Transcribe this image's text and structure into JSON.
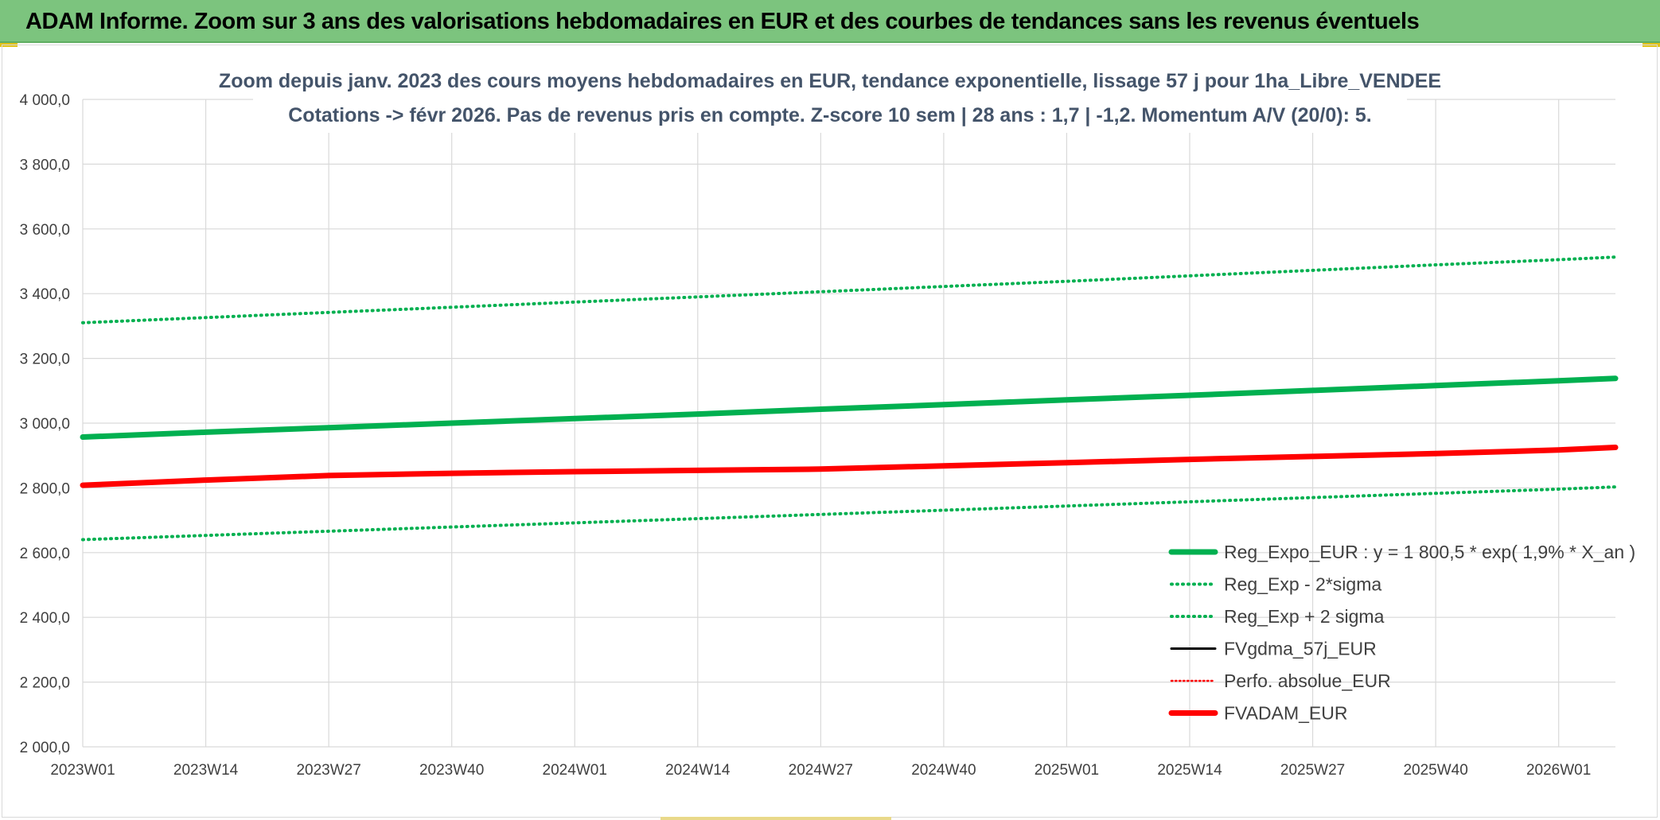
{
  "banner": {
    "title": "ADAM Informe. Zoom sur 3 ans des valorisations hebdomadaires en EUR et des courbes de tendances sans les revenus éventuels"
  },
  "colors": {
    "banner": "#7cc47e",
    "reg_expo": "#00b050",
    "band": "#00b050",
    "fvgdma": "#000000",
    "perfo": "#ff0000",
    "fvadam": "#ff0000",
    "title_text": "#44546a",
    "grid": "#d9d9d9"
  },
  "chart_data": {
    "type": "line",
    "title": "Zoom depuis janv. 2023 des cours moyens hebdomadaires en EUR, tendance exponentielle, lissage 57 j pour 1ha_Libre_VENDEE",
    "subtitle": "Cotations -> févr 2026. Pas de revenus pris en compte. Z-score 10 sem | 28 ans : 1,7 | -1,2. Momentum A/V (20/0): 5.",
    "xlabel": "",
    "ylabel": "",
    "ylim": [
      2000,
      4000
    ],
    "yticks": [
      "2 000,0",
      "2 200,0",
      "2 400,0",
      "2 600,0",
      "2 800,0",
      "3 000,0",
      "3 200,0",
      "3 400,0",
      "3 600,0",
      "3 800,0",
      "4 000,0"
    ],
    "x_labels": [
      "2023W01",
      "2023W14",
      "2023W27",
      "2023W40",
      "2024W01",
      "2024W14",
      "2024W27",
      "2024W40",
      "2025W01",
      "2025W14",
      "2025W27",
      "2025W40",
      "2026W01"
    ],
    "x_range": [
      "2023W01",
      "2026W07"
    ],
    "grid": true,
    "legend_position": "bottom-right",
    "series": [
      {
        "name": "Reg_Expo_EUR : y = 1 800,5 * exp( 1,9% *  X_an )",
        "style": "solid-thick",
        "color": "#00b050",
        "x": [
          "2023W01",
          "2023W14",
          "2023W27",
          "2023W40",
          "2024W01",
          "2024W14",
          "2024W27",
          "2024W40",
          "2025W01",
          "2025W14",
          "2025W27",
          "2025W40",
          "2026W01",
          "2026W07"
        ],
        "values": [
          2957,
          2972,
          2986,
          3000,
          3014,
          3028,
          3043,
          3057,
          3072,
          3086,
          3101,
          3116,
          3131,
          3138
        ]
      },
      {
        "name": "Reg_Exp - 2*sigma",
        "style": "dotted",
        "color": "#00b050",
        "x": [
          "2023W01",
          "2023W14",
          "2023W27",
          "2023W40",
          "2024W01",
          "2024W14",
          "2024W27",
          "2024W40",
          "2025W01",
          "2025W14",
          "2025W27",
          "2025W40",
          "2026W01",
          "2026W07"
        ],
        "values": [
          2640,
          2653,
          2666,
          2679,
          2692,
          2705,
          2718,
          2731,
          2744,
          2757,
          2770,
          2783,
          2796,
          2803
        ]
      },
      {
        "name": "Reg_Exp + 2 sigma",
        "style": "dotted",
        "color": "#00b050",
        "x": [
          "2023W01",
          "2023W14",
          "2023W27",
          "2023W40",
          "2024W01",
          "2024W14",
          "2024W27",
          "2024W40",
          "2025W01",
          "2025W14",
          "2025W27",
          "2025W40",
          "2026W01",
          "2026W07"
        ],
        "values": [
          3310,
          3326,
          3342,
          3358,
          3374,
          3390,
          3406,
          3422,
          3438,
          3455,
          3472,
          3489,
          3505,
          3513
        ]
      },
      {
        "name": "FVgdma_57j_EUR",
        "style": "solid",
        "color": "#000000",
        "x": [
          "2023W01",
          "2023W14",
          "2023W27",
          "2023W40",
          "2024W01",
          "2024W14",
          "2024W27",
          "2024W40",
          "2025W01",
          "2025W14",
          "2025W27",
          "2025W40",
          "2026W01",
          "2026W07"
        ],
        "values": [
          2808,
          2824,
          2838,
          2845,
          2850,
          2854,
          2858,
          2868,
          2878,
          2888,
          2897,
          2906,
          2917,
          2922
        ]
      },
      {
        "name": "Perfo. absolue_EUR",
        "style": "dotted-thin",
        "color": "#ff0000",
        "x": [],
        "values": []
      },
      {
        "name": "FVADAM_EUR",
        "style": "solid-thick",
        "color": "#ff0000",
        "x": [
          "2023W01",
          "2023W14",
          "2023W27",
          "2023W40",
          "2024W01",
          "2024W14",
          "2024W27",
          "2024W40",
          "2025W01",
          "2025W14",
          "2025W27",
          "2025W40",
          "2026W01",
          "2026W07"
        ],
        "values": [
          2808,
          2824,
          2838,
          2845,
          2850,
          2854,
          2858,
          2868,
          2878,
          2888,
          2897,
          2906,
          2917,
          2925
        ]
      }
    ]
  }
}
